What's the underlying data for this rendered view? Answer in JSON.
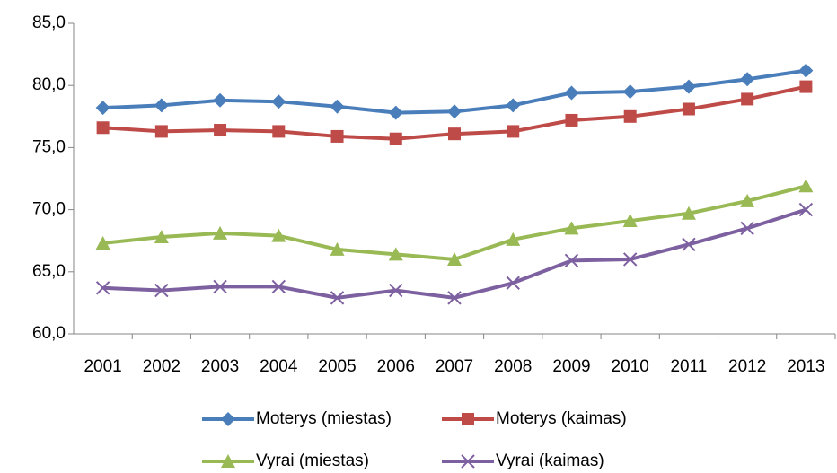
{
  "chart_data": {
    "type": "line",
    "categories": [
      "2001",
      "2002",
      "2003",
      "2004",
      "2005",
      "2006",
      "2007",
      "2008",
      "2009",
      "2010",
      "2011",
      "2012",
      "2013"
    ],
    "ylim": [
      60,
      85
    ],
    "yticks": [
      {
        "value": 60,
        "label": "60,0"
      },
      {
        "value": 65,
        "label": "65,0"
      },
      {
        "value": 70,
        "label": "70,0"
      },
      {
        "value": 75,
        "label": "75,0"
      },
      {
        "value": 80,
        "label": "80,0"
      },
      {
        "value": 85,
        "label": "85,0"
      }
    ],
    "grid": false,
    "legend": "bottom",
    "series": [
      {
        "name": "Moterys (miestas)",
        "color": "#4a7ebb",
        "marker": "diamond",
        "values": [
          78.2,
          78.4,
          78.8,
          78.7,
          78.3,
          77.8,
          77.9,
          78.4,
          79.4,
          79.5,
          79.9,
          80.5,
          81.2
        ]
      },
      {
        "name": "Moterys (kaimas)",
        "color": "#be4b48",
        "marker": "square",
        "values": [
          76.6,
          76.3,
          76.4,
          76.3,
          75.9,
          75.7,
          76.1,
          76.3,
          77.2,
          77.5,
          78.1,
          78.9,
          79.9
        ]
      },
      {
        "name": "Vyrai (miestas)",
        "color": "#98b954",
        "marker": "triangle",
        "values": [
          67.3,
          67.8,
          68.1,
          67.9,
          66.8,
          66.4,
          66.0,
          67.6,
          68.5,
          69.1,
          69.7,
          70.7,
          71.9
        ]
      },
      {
        "name": "Vyrai (kaimas)",
        "color": "#7d60a0",
        "marker": "x",
        "values": [
          63.7,
          63.5,
          63.8,
          63.8,
          62.9,
          63.5,
          62.9,
          64.1,
          65.9,
          66.0,
          67.2,
          68.5,
          70.0
        ]
      }
    ]
  }
}
